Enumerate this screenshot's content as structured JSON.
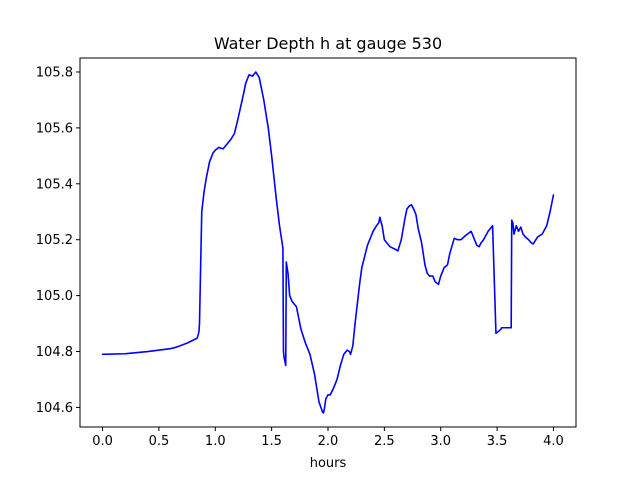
{
  "chart_data": {
    "type": "line",
    "title": "Water Depth h at gauge 530",
    "xlabel": "hours",
    "ylabel": "",
    "xlim": [
      -0.2,
      4.2
    ],
    "ylim": [
      104.53,
      105.85
    ],
    "xticks": [
      0.0,
      0.5,
      1.0,
      1.5,
      2.0,
      2.5,
      3.0,
      3.5,
      4.0
    ],
    "xtick_labels": [
      "0.0",
      "0.5",
      "1.0",
      "1.5",
      "2.0",
      "2.5",
      "3.0",
      "3.5",
      "4.0"
    ],
    "yticks": [
      104.6,
      104.8,
      105.0,
      105.2,
      105.4,
      105.6,
      105.8
    ],
    "ytick_labels": [
      "104.6",
      "104.8",
      "105.0",
      "105.2",
      "105.4",
      "105.6",
      "105.8"
    ],
    "grid": false,
    "series": [
      {
        "color": "#0000ff",
        "x": [
          0.0,
          0.2,
          0.4,
          0.6,
          0.65,
          0.75,
          0.84,
          0.855,
          0.86,
          0.88,
          0.9,
          0.92,
          0.95,
          0.98,
          1.0,
          1.03,
          1.07,
          1.1,
          1.14,
          1.17,
          1.2,
          1.25,
          1.27,
          1.3,
          1.33,
          1.36,
          1.39,
          1.43,
          1.47,
          1.5,
          1.54,
          1.57,
          1.6,
          1.605,
          1.61,
          1.625,
          1.63,
          1.645,
          1.66,
          1.68,
          1.72,
          1.74,
          1.76,
          1.8,
          1.84,
          1.88,
          1.92,
          1.95,
          1.96,
          1.97,
          1.98,
          2.0,
          2.02,
          2.05,
          2.08,
          2.11,
          2.14,
          2.17,
          2.19,
          2.2,
          2.22,
          2.24,
          2.26,
          2.28,
          2.3,
          2.35,
          2.4,
          2.43,
          2.45,
          2.46,
          2.47,
          2.48,
          2.5,
          2.55,
          2.6,
          2.62,
          2.65,
          2.68,
          2.7,
          2.72,
          2.74,
          2.76,
          2.78,
          2.8,
          2.83,
          2.86,
          2.88,
          2.9,
          2.93,
          2.95,
          2.98,
          3.0,
          3.03,
          3.06,
          3.08,
          3.12,
          3.15,
          3.18,
          3.22,
          3.27,
          3.32,
          3.34,
          3.36,
          3.38,
          3.4,
          3.42,
          3.46,
          3.49,
          3.52,
          3.535,
          3.54,
          3.56,
          3.6,
          3.625,
          3.63,
          3.64,
          3.65,
          3.67,
          3.69,
          3.71,
          3.73,
          3.75,
          3.78,
          3.8,
          3.82,
          3.86,
          3.9,
          3.94,
          3.97,
          4.0
        ],
        "y": [
          104.79,
          104.792,
          104.8,
          104.81,
          104.815,
          104.83,
          104.848,
          104.87,
          104.9,
          105.3,
          105.37,
          105.42,
          105.48,
          105.51,
          105.52,
          105.53,
          105.525,
          105.54,
          105.56,
          105.58,
          105.63,
          105.72,
          105.76,
          105.79,
          105.785,
          105.8,
          105.78,
          105.7,
          105.6,
          105.5,
          105.35,
          105.25,
          105.17,
          104.8,
          104.78,
          104.75,
          105.12,
          105.08,
          105.0,
          104.98,
          104.96,
          104.92,
          104.88,
          104.83,
          104.79,
          104.72,
          104.62,
          104.585,
          104.58,
          104.6,
          104.63,
          104.645,
          104.645,
          104.67,
          104.7,
          104.75,
          104.79,
          104.805,
          104.8,
          104.79,
          104.82,
          104.9,
          104.97,
          105.04,
          105.1,
          105.18,
          105.23,
          105.25,
          105.26,
          105.28,
          105.265,
          105.25,
          105.2,
          105.175,
          105.165,
          105.16,
          105.2,
          105.27,
          105.31,
          105.32,
          105.325,
          105.31,
          105.29,
          105.24,
          105.19,
          105.11,
          105.08,
          105.07,
          105.07,
          105.05,
          105.04,
          105.07,
          105.1,
          105.11,
          105.15,
          105.205,
          105.2,
          105.2,
          105.215,
          105.23,
          105.18,
          105.175,
          105.19,
          105.2,
          105.215,
          105.23,
          105.25,
          104.865,
          104.875,
          104.88,
          104.885,
          104.885,
          104.885,
          104.885,
          105.27,
          105.26,
          105.22,
          105.25,
          105.23,
          105.245,
          105.22,
          105.21,
          105.2,
          105.19,
          105.185,
          105.21,
          105.22,
          105.25,
          105.3,
          105.36
        ]
      }
    ]
  }
}
